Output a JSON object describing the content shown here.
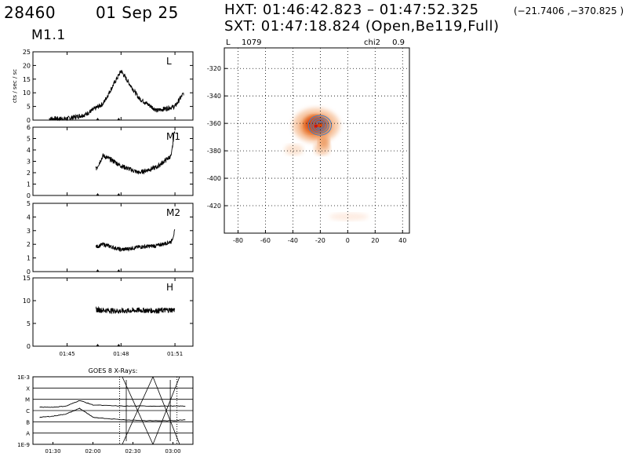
{
  "header": {
    "flare_id": "28460",
    "date": "01 Sep 25",
    "goes_class": "M1.1",
    "hxt_line": "HXT: 01:46:42.823 – 01:47:52.325",
    "hxt_position": "(−21.7406 ,−370.825 )",
    "sxt_line": "SXT: 01:47:18.824 (Open,Be119,Full)"
  },
  "colors": {
    "image_core": "#d64a10",
    "image_outer": "#f7c7a4",
    "contours": "#3f7fc8",
    "peak": "#cc1111"
  },
  "chart_data": [
    {
      "type": "line",
      "title": "",
      "channel_label": "L",
      "ylabel": "cts / sec / sc",
      "ylim": [
        0,
        25
      ],
      "yticks": [
        "0",
        "5",
        "10",
        "15",
        "20",
        "25"
      ],
      "x": [
        "01:44",
        "01:45",
        "01:46",
        "01:47",
        "01:48",
        "01:49",
        "01:50",
        "01:51",
        "01:51.5"
      ],
      "values": [
        0.5,
        0.5,
        2,
        6,
        18,
        8,
        3.5,
        5,
        10
      ]
    },
    {
      "type": "line",
      "channel_label": "M1",
      "ylim": [
        0,
        6
      ],
      "yticks": [
        "0",
        "1",
        "2",
        "3",
        "4",
        "5",
        "6"
      ],
      "x": [
        "01:46.6",
        "01:47",
        "01:47.5",
        "01:48",
        "01:49",
        "01:50",
        "01:50.8",
        "01:51"
      ],
      "values": [
        2.3,
        3.5,
        3.1,
        2.6,
        2.0,
        2.5,
        3.5,
        6.0
      ]
    },
    {
      "type": "line",
      "channel_label": "M2",
      "ylim": [
        0,
        5
      ],
      "yticks": [
        "0",
        "1",
        "2",
        "3",
        "4",
        "5"
      ],
      "x": [
        "01:46.6",
        "01:47",
        "01:48",
        "01:49",
        "01:50",
        "01:50.8",
        "01:51"
      ],
      "values": [
        1.8,
        2.0,
        1.6,
        1.8,
        1.9,
        2.2,
        3.0
      ]
    },
    {
      "type": "line",
      "channel_label": "H",
      "ylim": [
        0,
        15
      ],
      "yticks": [
        "0",
        "5",
        "10",
        "15"
      ],
      "xticks": [
        "01:45",
        "01:48",
        "01:51"
      ],
      "x": [
        "01:46.6",
        "01:48",
        "01:49",
        "01:50",
        "01:51"
      ],
      "values": [
        8,
        7.7,
        7.9,
        7.8,
        8.0
      ]
    },
    {
      "type": "line",
      "title": "GOES 8 X-Rays:",
      "yscale": "log",
      "ylim": [
        "1E-9",
        "1E-3"
      ],
      "yticks": [
        "1E-3",
        "X",
        "M",
        "C",
        "B",
        "A",
        "1E-9"
      ],
      "xticks": [
        "01:30",
        "02:00",
        "02:30",
        "03:00"
      ],
      "series": [
        {
          "values": [
            -5.7,
            -5.7,
            -5.6,
            -5.1,
            -5.5,
            -5.6,
            -5.6,
            -5.6,
            -5.6
          ]
        },
        {
          "values": [
            -6.6,
            -6.5,
            -6.3,
            -5.8,
            -6.6,
            -6.8,
            -6.9,
            -6.9,
            -6.8
          ]
        }
      ],
      "x": [
        "01:20",
        "01:30",
        "01:40",
        "01:50",
        "02:00",
        "02:20",
        "02:40",
        "03:00",
        "03:10"
      ]
    },
    {
      "type": "heatmap",
      "channel_label": "L",
      "counts": "1079",
      "chi2_label": "chi2",
      "chi2": "0.9",
      "xlim": [
        -90,
        45
      ],
      "ylim": [
        -440,
        -305
      ],
      "xticks": [
        "-80",
        "-60",
        "-40",
        "-20",
        "0",
        "20",
        "40"
      ],
      "yticks": [
        "-320",
        "-340",
        "-360",
        "-380",
        "-400",
        "-420"
      ],
      "source_center": [
        -22,
        -362
      ]
    }
  ]
}
